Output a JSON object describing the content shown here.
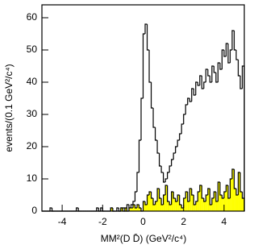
{
  "chart_data": {
    "type": "histogram",
    "xlabel": "MM²(D D̄) (GeV²/c⁴)",
    "ylabel": "events/(0.1 GeV²/c⁴)",
    "bins": [
      -5,
      -4.9,
      -4.8,
      -4.7,
      -4.6,
      -4.5,
      -4.4,
      -4.3,
      -4.2,
      -4.1,
      -4,
      -3.9,
      -3.8,
      -3.7,
      -3.6,
      -3.5,
      -3.4,
      -3.3,
      -3.2,
      -3.1,
      -3,
      -2.9,
      -2.8,
      -2.7,
      -2.6,
      -2.5,
      -2.4,
      -2.3,
      -2.2,
      -2.1,
      -2,
      -1.9,
      -1.8,
      -1.7,
      -1.6,
      -1.5,
      -1.4,
      -1.3,
      -1.2,
      -1.1,
      -1,
      -0.9,
      -0.8,
      -0.7,
      -0.6,
      -0.5,
      -0.4,
      -0.3,
      -0.2,
      -0.1,
      0,
      0.1,
      0.2,
      0.3,
      0.4,
      0.5,
      0.6,
      0.7,
      0.8,
      0.9,
      1,
      1.1,
      1.2,
      1.3,
      1.4,
      1.5,
      1.6,
      1.7,
      1.8,
      1.9,
      2,
      2.1,
      2.2,
      2.3,
      2.4,
      2.5,
      2.6,
      2.7,
      2.8,
      2.9,
      3,
      3.1,
      3.2,
      3.3,
      3.4,
      3.5,
      3.6,
      3.7,
      3.8,
      3.9,
      4,
      4.1,
      4.2,
      4.3,
      4.4,
      4.5,
      4.6,
      4.7,
      4.8,
      4.9,
      5
    ],
    "series": [
      {
        "color": "#000000",
        "fill": "none",
        "values": [
          0,
          0,
          0,
          0,
          1,
          0,
          0,
          0,
          0,
          0,
          0,
          0,
          0,
          0,
          0,
          0,
          0,
          1,
          0,
          0,
          0,
          0,
          0,
          0,
          0,
          0,
          0,
          1,
          0,
          1,
          0,
          0,
          0,
          0,
          1,
          0,
          0,
          1,
          0,
          1,
          1,
          0,
          2,
          1,
          2,
          3,
          6,
          12,
          22,
          35,
          55,
          58,
          50,
          40,
          32,
          26,
          22,
          18,
          14,
          12,
          9,
          10,
          12,
          14,
          16,
          18,
          20,
          22,
          24,
          27,
          30,
          33,
          35,
          34,
          38,
          36,
          40,
          39,
          42,
          38,
          40,
          44,
          42,
          40,
          45,
          43,
          40,
          46,
          44,
          50,
          48,
          52,
          46,
          50,
          56,
          50,
          47,
          42,
          38,
          45
        ]
      },
      {
        "color": "#000000",
        "fill": "#ffff00",
        "values": [
          0,
          0,
          0,
          0,
          0,
          0,
          0,
          0,
          0,
          0,
          0,
          0,
          0,
          0,
          0,
          0,
          0,
          0,
          0,
          0,
          0,
          0,
          0,
          0,
          0,
          0,
          0,
          0,
          0,
          0,
          0,
          0,
          0,
          0,
          1,
          0,
          0,
          0,
          0,
          1,
          0,
          1,
          0,
          1,
          1,
          2,
          1,
          2,
          1,
          0,
          3,
          2,
          5,
          6,
          4,
          2,
          3,
          7,
          4,
          2,
          5,
          8,
          3,
          2,
          6,
          4,
          3,
          5,
          2,
          1,
          4,
          6,
          3,
          7,
          5,
          2,
          3,
          6,
          8,
          4,
          3,
          5,
          7,
          2,
          4,
          6,
          3,
          9,
          5,
          4,
          6,
          8,
          4,
          10,
          13,
          7,
          5,
          12,
          6,
          4
        ]
      }
    ],
    "xlim": [
      -5,
      5
    ],
    "xticks": [
      -4,
      -2,
      0,
      2,
      4
    ],
    "ylim": [
      0,
      64
    ],
    "yticks": [
      0,
      10,
      20,
      30,
      40,
      50,
      60
    ]
  }
}
